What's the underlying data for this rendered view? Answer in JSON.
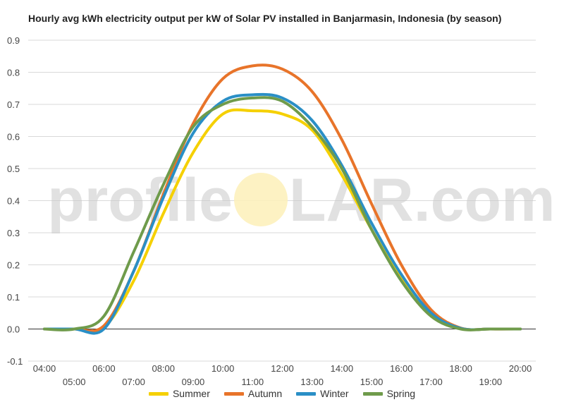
{
  "chart_data": {
    "type": "line",
    "title": "Hourly avg kWh electricity output per kW of Solar PV installed in Banjarmasin, Indonesia (by season)",
    "xlabel": "",
    "ylabel": "",
    "x": [
      "04:00",
      "05:00",
      "06:00",
      "07:00",
      "08:00",
      "09:00",
      "10:00",
      "11:00",
      "12:00",
      "13:00",
      "14:00",
      "15:00",
      "16:00",
      "17:00",
      "18:00",
      "19:00",
      "20:00"
    ],
    "ylim": [
      -0.1,
      0.9
    ],
    "yticks": [
      -0.1,
      0.0,
      0.1,
      0.2,
      0.3,
      0.4,
      0.5,
      0.6,
      0.7,
      0.8,
      0.9
    ],
    "grid": true,
    "legend_position": "bottom",
    "series": [
      {
        "name": "Summer",
        "color": "#f5d000",
        "values": [
          0.0,
          0.0,
          0.005,
          0.15,
          0.36,
          0.55,
          0.67,
          0.68,
          0.67,
          0.62,
          0.48,
          0.31,
          0.16,
          0.05,
          0.002,
          0.0,
          0.0
        ]
      },
      {
        "name": "Autumn",
        "color": "#e8742a",
        "values": [
          0.0,
          0.0,
          0.01,
          0.18,
          0.42,
          0.64,
          0.78,
          0.82,
          0.81,
          0.74,
          0.59,
          0.39,
          0.2,
          0.06,
          0.003,
          0.0,
          0.0
        ]
      },
      {
        "name": "Winter",
        "color": "#2a8fc6",
        "values": [
          0.0,
          0.0,
          0.0,
          0.18,
          0.41,
          0.61,
          0.71,
          0.73,
          0.72,
          0.65,
          0.51,
          0.33,
          0.17,
          0.05,
          0.002,
          0.0,
          0.0
        ]
      },
      {
        "name": "Spring",
        "color": "#6f9b4b",
        "values": [
          0.0,
          0.0,
          0.04,
          0.24,
          0.45,
          0.63,
          0.7,
          0.72,
          0.71,
          0.63,
          0.5,
          0.31,
          0.15,
          0.04,
          0.0,
          0.0,
          0.0
        ]
      }
    ]
  },
  "watermark": {
    "text_left": "profile",
    "text_right": "LAR.com",
    "sun_color": "#fdf0b8",
    "text_color": "#c8c8c8"
  }
}
